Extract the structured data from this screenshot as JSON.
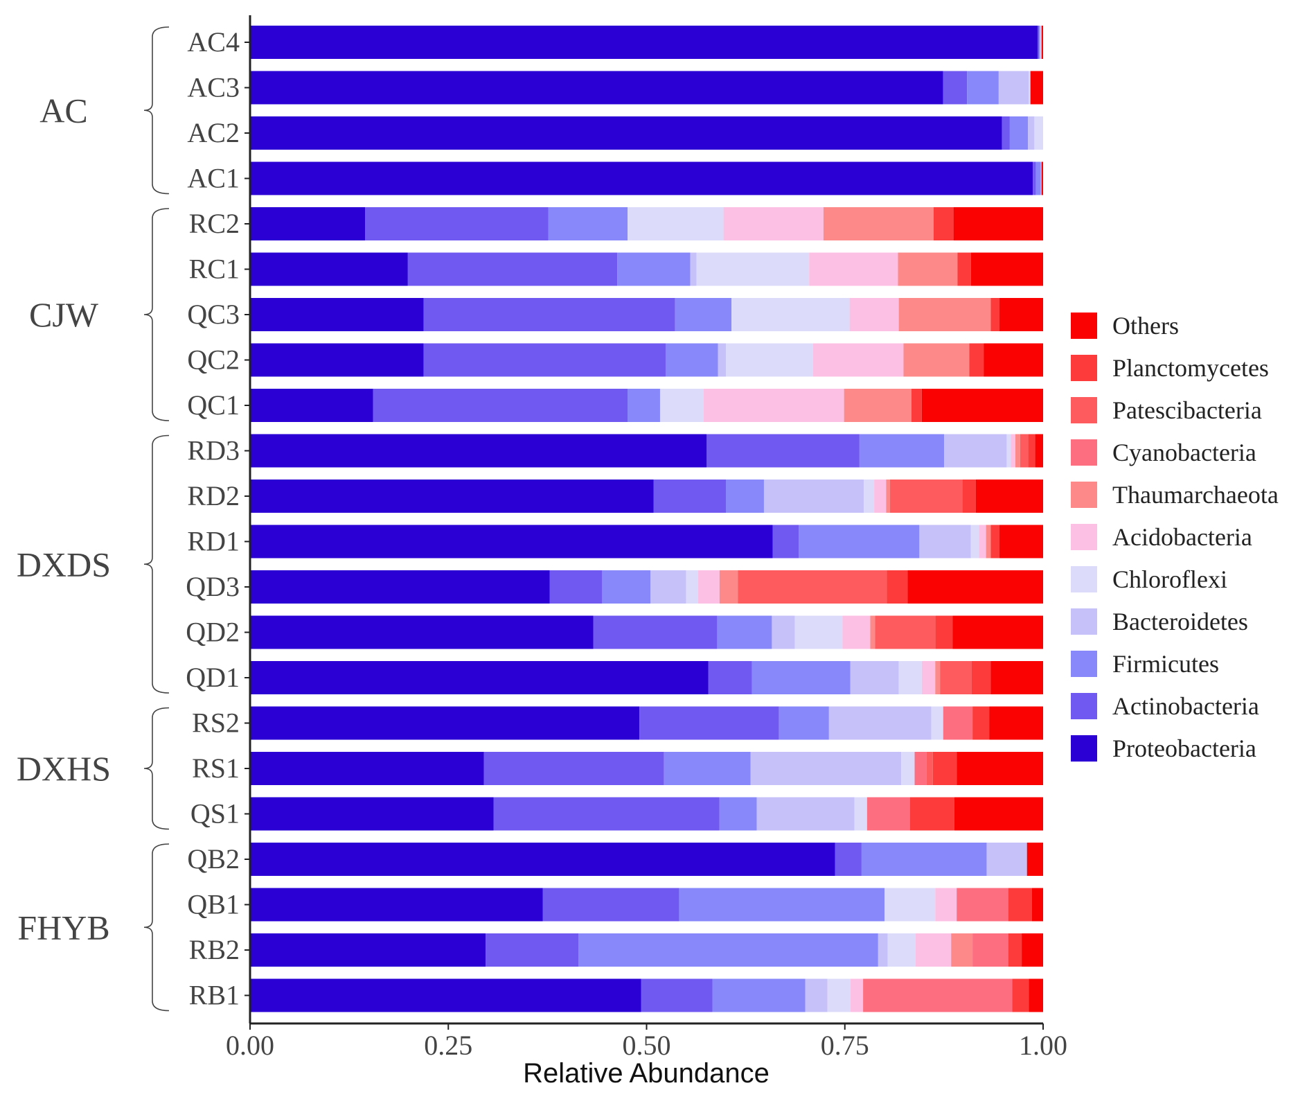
{
  "chart_data": {
    "type": "bar",
    "orientation": "horizontal",
    "stacked": true,
    "xlabel": "Relative Abundance",
    "xlim": [
      0,
      1
    ],
    "xticks": [
      0,
      0.25,
      0.5,
      0.75,
      1
    ],
    "xtick_labels": [
      "0.00",
      "0.25",
      "0.50",
      "0.75",
      "1.00"
    ],
    "categories": [
      "AC4",
      "AC3",
      "AC2",
      "AC1",
      "RC2",
      "RC1",
      "QC3",
      "QC2",
      "QC1",
      "RD3",
      "RD2",
      "RD1",
      "QD3",
      "QD2",
      "QD1",
      "RS2",
      "RS1",
      "QS1",
      "QB2",
      "QB1",
      "RB2",
      "RB1"
    ],
    "groups": [
      {
        "name": "AC",
        "members": [
          "AC4",
          "AC3",
          "AC2",
          "AC1"
        ]
      },
      {
        "name": "CJW",
        "members": [
          "RC2",
          "RC1",
          "QC3",
          "QC2",
          "QC1"
        ]
      },
      {
        "name": "DXDS",
        "members": [
          "RD3",
          "RD2",
          "RD1",
          "QD3",
          "QD2",
          "QD1"
        ]
      },
      {
        "name": "DXHS",
        "members": [
          "RS2",
          "RS1",
          "QS1"
        ]
      },
      {
        "name": "FHYB",
        "members": [
          "QB2",
          "QB1",
          "RB2",
          "RB1"
        ]
      }
    ],
    "legend_position": "right",
    "series": [
      {
        "name": "Proteobacteria",
        "color": "#2a00d4",
        "values": [
          0.993,
          0.874,
          0.948,
          0.987,
          0.145,
          0.199,
          0.219,
          0.219,
          0.155,
          0.577,
          0.509,
          0.659,
          0.378,
          0.433,
          0.578,
          0.491,
          0.295,
          0.307,
          0.725,
          0.369,
          0.297,
          0.493
        ]
      },
      {
        "name": "Actinobacteria",
        "color": "#7059f0",
        "values": [
          0.002,
          0.03,
          0.01,
          0.004,
          0.231,
          0.264,
          0.317,
          0.305,
          0.321,
          0.193,
          0.091,
          0.033,
          0.066,
          0.156,
          0.055,
          0.176,
          0.227,
          0.285,
          0.033,
          0.172,
          0.117,
          0.09
        ]
      },
      {
        "name": "Firmicutes",
        "color": "#8888fb",
        "values": [
          0.001,
          0.04,
          0.023,
          0.006,
          0.1,
          0.092,
          0.071,
          0.066,
          0.041,
          0.107,
          0.048,
          0.152,
          0.061,
          0.069,
          0.124,
          0.063,
          0.109,
          0.047,
          0.155,
          0.259,
          0.378,
          0.117
        ]
      },
      {
        "name": "Bacteroidetes",
        "color": "#c7c1fa",
        "values": [
          0.001,
          0.038,
          0.008,
          0.001,
          0.0,
          0.008,
          0.0,
          0.01,
          0.0,
          0.079,
          0.126,
          0.065,
          0.045,
          0.029,
          0.061,
          0.129,
          0.19,
          0.123,
          0.05,
          0.0,
          0.012,
          0.028
        ]
      },
      {
        "name": "Chloroflexi",
        "color": "#dcdcfa",
        "values": [
          0.001,
          0.002,
          0.011,
          0.0,
          0.121,
          0.142,
          0.149,
          0.11,
          0.055,
          0.005,
          0.013,
          0.01,
          0.015,
          0.06,
          0.029,
          0.015,
          0.017,
          0.016,
          0.0,
          0.064,
          0.035,
          0.029
        ]
      },
      {
        "name": "Acidobacteria",
        "color": "#fcc0e5",
        "values": [
          0.0,
          0.0,
          0.0,
          0.0,
          0.126,
          0.112,
          0.062,
          0.114,
          0.177,
          0.006,
          0.015,
          0.009,
          0.027,
          0.035,
          0.017,
          0.0,
          0.0,
          0.0,
          0.0,
          0.027,
          0.045,
          0.016
        ]
      },
      {
        "name": "Thaumarchaeota",
        "color": "#fd8a88",
        "values": [
          0.0,
          0.0,
          0.0,
          0.0,
          0.139,
          0.075,
          0.116,
          0.083,
          0.085,
          0.006,
          0.005,
          0.006,
          0.023,
          0.006,
          0.006,
          0.0,
          0.0,
          0.0,
          0.0,
          0.0,
          0.027,
          0.0
        ]
      },
      {
        "name": "Cyanobacteria",
        "color": "#fd6e80",
        "values": [
          0.0,
          0.0,
          0.0,
          0.0,
          0.0,
          0.0,
          0.0,
          0.0,
          0.0,
          0.0,
          0.0,
          0.0,
          0.0,
          0.0,
          0.0,
          0.037,
          0.015,
          0.054,
          0.0,
          0.065,
          0.045,
          0.188
        ]
      },
      {
        "name": "Patescibacteria",
        "color": "#fd5b5d",
        "values": [
          0.0,
          0.0,
          0.0,
          0.0,
          0.0,
          0.0,
          0.0,
          0.0,
          0.0,
          0.01,
          0.091,
          0.0,
          0.188,
          0.076,
          0.04,
          0.0,
          0.008,
          0.0,
          0.0,
          0.0,
          0.0,
          0.0
        ]
      },
      {
        "name": "Planctomycetes",
        "color": "#fd3b3b",
        "values": [
          0.0,
          0.0,
          0.0,
          0.0,
          0.025,
          0.017,
          0.011,
          0.018,
          0.013,
          0.009,
          0.017,
          0.011,
          0.026,
          0.022,
          0.024,
          0.021,
          0.03,
          0.056,
          0.0,
          0.03,
          0.017,
          0.021
        ]
      },
      {
        "name": "Others",
        "color": "#fb0202",
        "values": [
          0.002,
          0.016,
          0.0,
          0.002,
          0.113,
          0.091,
          0.055,
          0.075,
          0.153,
          0.01,
          0.085,
          0.055,
          0.171,
          0.114,
          0.066,
          0.068,
          0.109,
          0.112,
          0.02,
          0.014,
          0.027,
          0.018
        ]
      }
    ]
  }
}
